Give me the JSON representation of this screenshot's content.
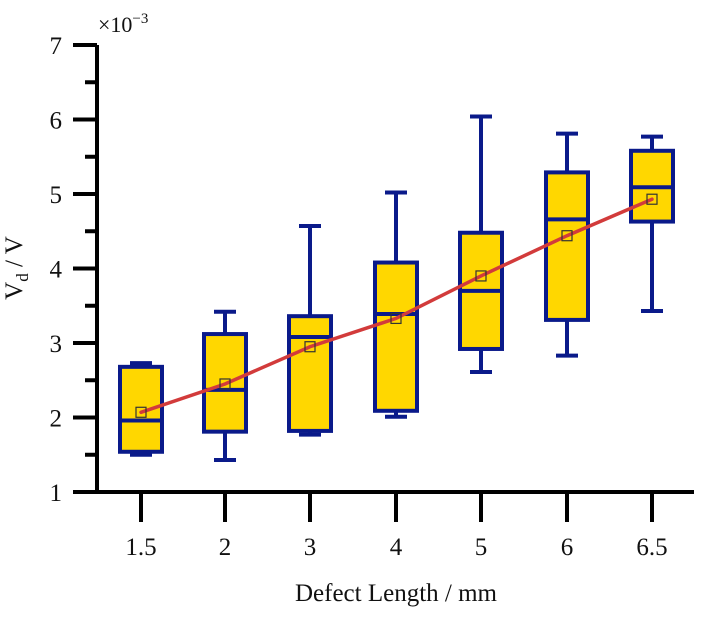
{
  "chart_data": {
    "type": "box",
    "title": "",
    "xlabel": "Defect Length / mm",
    "ylabel_main": "V",
    "ylabel_sub": "d",
    "ylabel_tail": " / V",
    "y_multiplier_base": "×10",
    "y_multiplier_exp": "−3",
    "ylim": [
      1,
      7
    ],
    "yticks": [
      "1",
      "2",
      "3",
      "4",
      "5",
      "6",
      "7"
    ],
    "categories": [
      "1.5",
      "2",
      "3",
      "4",
      "5",
      "6",
      "6.5"
    ],
    "series": [
      {
        "name": "1.5",
        "whisker_low": 1.5,
        "q1": 1.54,
        "median": 1.96,
        "q3": 2.68,
        "whisker_high": 2.73,
        "mean": 2.07
      },
      {
        "name": "2",
        "whisker_low": 1.43,
        "q1": 1.81,
        "median": 2.37,
        "q3": 3.12,
        "whisker_high": 3.42,
        "mean": 2.45
      },
      {
        "name": "3",
        "whisker_low": 1.77,
        "q1": 1.82,
        "median": 3.08,
        "q3": 3.36,
        "whisker_high": 4.57,
        "mean": 2.95
      },
      {
        "name": "4",
        "whisker_low": 2.01,
        "q1": 2.09,
        "median": 3.39,
        "q3": 4.08,
        "whisker_high": 5.02,
        "mean": 3.33
      },
      {
        "name": "5",
        "whisker_low": 2.61,
        "q1": 2.92,
        "median": 3.7,
        "q3": 4.48,
        "whisker_high": 6.04,
        "mean": 3.9
      },
      {
        "name": "6",
        "whisker_low": 2.83,
        "q1": 3.31,
        "median": 4.66,
        "q3": 5.29,
        "whisker_high": 5.81,
        "mean": 4.44
      },
      {
        "name": "6.5",
        "whisker_low": 3.43,
        "q1": 4.63,
        "median": 5.09,
        "q3": 5.58,
        "whisker_high": 5.77,
        "mean": 4.93
      }
    ],
    "mean_line": true,
    "grid": false,
    "legend": "none",
    "colors": {
      "box_fill": "#FFD700",
      "box_stroke": "#0A1A8A",
      "mean_line": "#D23B3B",
      "mean_marker": "#333333",
      "axis": "#000000"
    }
  }
}
